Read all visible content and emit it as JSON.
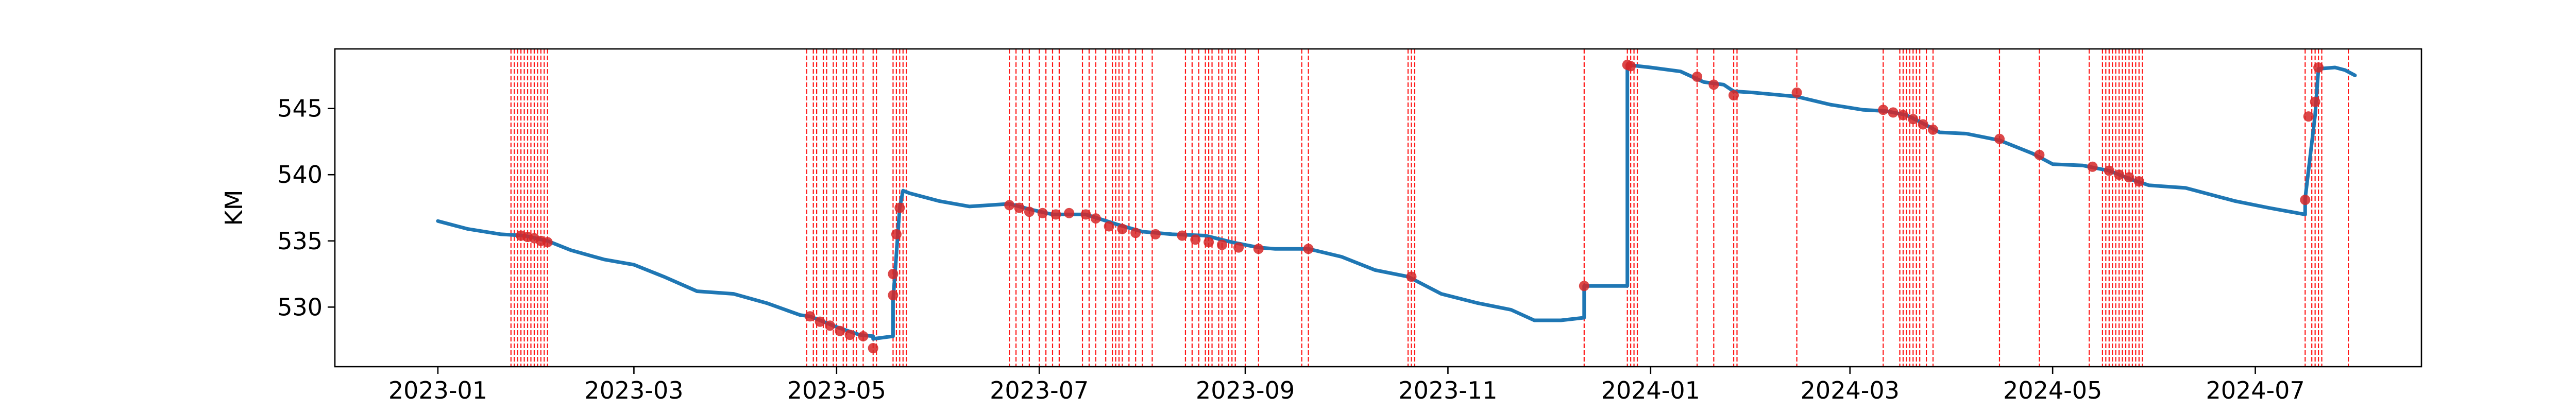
{
  "chart_data": {
    "type": "line",
    "title": "",
    "xlabel": "",
    "ylabel": "KM",
    "x_type": "date",
    "xlim": [
      "2022-12-01",
      "2024-08-20"
    ],
    "ylim": [
      525.5,
      549.5
    ],
    "grid": false,
    "x_ticks": [
      "2023-01",
      "2023-03",
      "2023-05",
      "2023-07",
      "2023-09",
      "2023-11",
      "2024-01",
      "2024-03",
      "2024-05",
      "2024-07"
    ],
    "y_ticks": [
      530,
      535,
      540,
      545
    ],
    "colors": {
      "line": "#1f77b4",
      "marker": "#d62728",
      "vline": "#ff0000",
      "axes": "#000000"
    },
    "series": [
      {
        "style": "line",
        "x": [
          "2023-01-01",
          "2023-01-10",
          "2023-01-20",
          "2023-01-27",
          "2023-02-03",
          "2023-02-10",
          "2023-02-20",
          "2023-03-01",
          "2023-03-10",
          "2023-03-20",
          "2023-03-31",
          "2023-04-10",
          "2023-04-20",
          "2023-04-23",
          "2023-05-01",
          "2023-05-08",
          "2023-05-12",
          "2023-05-12",
          "2023-05-18",
          "2023-05-18",
          "2023-05-19",
          "2023-05-20",
          "2023-05-21",
          "2023-05-23",
          "2023-06-01",
          "2023-06-10",
          "2023-06-22",
          "2023-06-28",
          "2023-07-05",
          "2023-07-15",
          "2023-07-25",
          "2023-08-01",
          "2023-08-10",
          "2023-08-20",
          "2023-08-28",
          "2023-09-05",
          "2023-09-10",
          "2023-09-20",
          "2023-09-30",
          "2023-10-10",
          "2023-10-20",
          "2023-10-30",
          "2023-11-10",
          "2023-11-20",
          "2023-11-27",
          "2023-12-05",
          "2023-12-12",
          "2023-12-12",
          "2023-12-25",
          "2023-12-25",
          "2024-01-01",
          "2024-01-10",
          "2024-01-17",
          "2024-01-23",
          "2024-01-26",
          "2024-02-01",
          "2024-02-14",
          "2024-02-24",
          "2024-03-05",
          "2024-03-12",
          "2024-03-18",
          "2024-03-22",
          "2024-03-28",
          "2024-04-05",
          "2024-04-15",
          "2024-04-25",
          "2024-05-01",
          "2024-05-10",
          "2024-05-18",
          "2024-05-24",
          "2024-05-30",
          "2024-06-10",
          "2024-06-25",
          "2024-07-05",
          "2024-07-16",
          "2024-07-16",
          "2024-07-19",
          "2024-07-20",
          "2024-07-25",
          "2024-07-28",
          "2024-07-31"
        ],
        "y": [
          536.5,
          535.9,
          535.5,
          535.4,
          535.0,
          534.3,
          533.6,
          533.2,
          532.3,
          531.2,
          531.0,
          530.3,
          529.4,
          529.3,
          528.5,
          527.9,
          527.8,
          527.6,
          527.8,
          530.5,
          534.0,
          537.5,
          538.8,
          538.6,
          538.0,
          537.6,
          537.8,
          537.4,
          537.0,
          537.0,
          536.2,
          535.7,
          535.5,
          535.4,
          534.9,
          534.5,
          534.4,
          534.4,
          533.8,
          532.8,
          532.3,
          531.0,
          530.3,
          529.8,
          529.0,
          529.0,
          529.2,
          531.6,
          531.6,
          548.3,
          548.1,
          547.8,
          547.0,
          546.8,
          546.3,
          546.2,
          545.9,
          545.3,
          544.9,
          544.8,
          544.5,
          544.0,
          543.2,
          543.1,
          542.6,
          541.6,
          540.8,
          540.7,
          540.3,
          539.7,
          539.2,
          539.0,
          538.0,
          537.5,
          537.0,
          538.2,
          544.5,
          548.0,
          548.1,
          547.9,
          547.5
        ]
      },
      {
        "style": "markers",
        "x": [
          "2023-01-26",
          "2023-01-28",
          "2023-01-30",
          "2023-02-01",
          "2023-02-03",
          "2023-04-23",
          "2023-04-26",
          "2023-04-29",
          "2023-05-02",
          "2023-05-05",
          "2023-05-09",
          "2023-05-12",
          "2023-05-18",
          "2023-05-18",
          "2023-05-19",
          "2023-05-20",
          "2023-06-22",
          "2023-06-25",
          "2023-06-28",
          "2023-07-02",
          "2023-07-06",
          "2023-07-10",
          "2023-07-15",
          "2023-07-18",
          "2023-07-22",
          "2023-07-26",
          "2023-07-30",
          "2023-08-05",
          "2023-08-13",
          "2023-08-17",
          "2023-08-21",
          "2023-08-25",
          "2023-08-30",
          "2023-09-05",
          "2023-09-20",
          "2023-10-21",
          "2023-12-12",
          "2023-12-25",
          "2023-12-26",
          "2024-01-15",
          "2024-01-20",
          "2024-01-26",
          "2024-02-14",
          "2024-03-11",
          "2024-03-14",
          "2024-03-17",
          "2024-03-20",
          "2024-03-23",
          "2024-03-26",
          "2024-04-15",
          "2024-04-27",
          "2024-05-13",
          "2024-05-18",
          "2024-05-21",
          "2024-05-24",
          "2024-05-27",
          "2024-07-16",
          "2024-07-17",
          "2024-07-19",
          "2024-07-20"
        ],
        "y": [
          535.4,
          535.3,
          535.2,
          535.0,
          534.9,
          529.3,
          528.9,
          528.6,
          528.2,
          527.9,
          527.8,
          526.9,
          530.9,
          532.5,
          535.5,
          537.5,
          537.7,
          537.5,
          537.2,
          537.1,
          537.0,
          537.1,
          537.0,
          536.7,
          536.1,
          535.9,
          535.6,
          535.5,
          535.4,
          535.1,
          534.9,
          534.7,
          534.5,
          534.4,
          534.4,
          532.3,
          531.6,
          548.3,
          548.2,
          547.4,
          546.8,
          546.0,
          546.2,
          544.9,
          544.7,
          544.5,
          544.2,
          543.8,
          543.4,
          542.7,
          541.5,
          540.6,
          540.3,
          540.0,
          539.8,
          539.5,
          538.1,
          544.4,
          545.5,
          548.1
        ]
      }
    ],
    "vlines": [
      "2023-01-23",
      "2023-01-24",
      "2023-01-25",
      "2023-01-26",
      "2023-01-27",
      "2023-01-28",
      "2023-01-29",
      "2023-01-30",
      "2023-01-31",
      "2023-02-01",
      "2023-02-02",
      "2023-02-03",
      "2023-04-22",
      "2023-04-24",
      "2023-04-25",
      "2023-04-27",
      "2023-04-28",
      "2023-04-30",
      "2023-05-01",
      "2023-05-03",
      "2023-05-04",
      "2023-05-06",
      "2023-05-07",
      "2023-05-09",
      "2023-05-12",
      "2023-05-13",
      "2023-05-18",
      "2023-05-19",
      "2023-05-20",
      "2023-05-21",
      "2023-05-22",
      "2023-06-22",
      "2023-06-24",
      "2023-06-26",
      "2023-06-28",
      "2023-07-01",
      "2023-07-03",
      "2023-07-05",
      "2023-07-07",
      "2023-07-14",
      "2023-07-16",
      "2023-07-18",
      "2023-07-21",
      "2023-07-23",
      "2023-07-24",
      "2023-07-25",
      "2023-07-26",
      "2023-07-28",
      "2023-07-30",
      "2023-08-01",
      "2023-08-04",
      "2023-08-14",
      "2023-08-16",
      "2023-08-18",
      "2023-08-20",
      "2023-08-21",
      "2023-08-22",
      "2023-08-24",
      "2023-08-25",
      "2023-08-27",
      "2023-08-28",
      "2023-08-29",
      "2023-09-01",
      "2023-09-05",
      "2023-09-18",
      "2023-09-20",
      "2023-10-20",
      "2023-10-21",
      "2023-10-22",
      "2023-12-12",
      "2023-12-25",
      "2023-12-26",
      "2023-12-27",
      "2023-12-28",
      "2024-01-15",
      "2024-01-20",
      "2024-01-26",
      "2024-01-27",
      "2024-02-14",
      "2024-03-11",
      "2024-03-16",
      "2024-03-17",
      "2024-03-18",
      "2024-03-19",
      "2024-03-20",
      "2024-03-21",
      "2024-03-22",
      "2024-03-24",
      "2024-03-26",
      "2024-04-15",
      "2024-04-27",
      "2024-05-12",
      "2024-05-16",
      "2024-05-17",
      "2024-05-18",
      "2024-05-19",
      "2024-05-20",
      "2024-05-21",
      "2024-05-22",
      "2024-05-23",
      "2024-05-24",
      "2024-05-25",
      "2024-05-26",
      "2024-05-27",
      "2024-05-28",
      "2024-07-16",
      "2024-07-18",
      "2024-07-19",
      "2024-07-20",
      "2024-07-21",
      "2024-07-29"
    ]
  }
}
